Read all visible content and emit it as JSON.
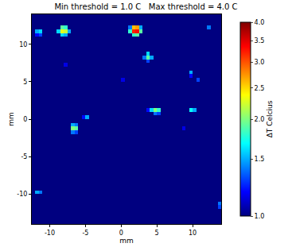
{
  "chart_data": {
    "type": "heatmap",
    "title": "Min threshold = 1.0 C   Max threshold = 4.0 C",
    "xlabel": "mm",
    "ylabel": "mm",
    "xlim": [
      -12.5,
      14
    ],
    "ylim": [
      -14,
      14
    ],
    "xticks": [
      -10,
      -5,
      0,
      5,
      10
    ],
    "yticks": [
      -10,
      -5,
      0,
      5,
      10
    ],
    "cell_size": 0.5,
    "background": 1.0,
    "cells": [
      [
        -11.75,
        11.75,
        1.5
      ],
      [
        -11.25,
        11.75,
        1.6
      ],
      [
        -11.75,
        11.25,
        1.2
      ],
      [
        -11.25,
        11.25,
        1.3
      ],
      [
        -8.25,
        11.75,
        2.3
      ],
      [
        -7.75,
        11.75,
        2.2
      ],
      [
        -8.25,
        12.25,
        1.9
      ],
      [
        -7.75,
        12.25,
        1.8
      ],
      [
        -8.75,
        11.75,
        1.6
      ],
      [
        -7.25,
        11.75,
        1.5
      ],
      [
        -8.25,
        11.25,
        1.6
      ],
      [
        -7.75,
        11.25,
        1.5
      ],
      [
        1.75,
        11.75,
        3.2
      ],
      [
        2.25,
        11.75,
        3.3
      ],
      [
        1.75,
        12.25,
        2.6
      ],
      [
        2.25,
        12.25,
        2.7
      ],
      [
        1.25,
        11.75,
        1.8
      ],
      [
        2.75,
        11.75,
        1.9
      ],
      [
        1.75,
        11.25,
        1.8
      ],
      [
        2.25,
        11.25,
        1.9
      ],
      [
        2.75,
        12.25,
        1.5
      ],
      [
        1.25,
        12.25,
        1.4
      ],
      [
        12.25,
        12.25,
        1.4
      ],
      [
        -7.75,
        7.25,
        1.15
      ],
      [
        3.75,
        8.25,
        1.9
      ],
      [
        3.75,
        8.75,
        1.6
      ],
      [
        4.25,
        8.25,
        1.5
      ],
      [
        3.25,
        8.25,
        1.4
      ],
      [
        3.75,
        7.75,
        1.3
      ],
      [
        0.25,
        5.25,
        1.15
      ],
      [
        9.75,
        6.25,
        1.5
      ],
      [
        9.75,
        5.75,
        1.2
      ],
      [
        10.75,
        5.25,
        1.3
      ],
      [
        4.75,
        1.25,
        2.0
      ],
      [
        5.25,
        1.25,
        1.8
      ],
      [
        4.25,
        1.25,
        1.6
      ],
      [
        4.75,
        0.75,
        1.4
      ],
      [
        5.25,
        0.75,
        1.3
      ],
      [
        3.75,
        1.25,
        1.2
      ],
      [
        9.75,
        1.25,
        1.7
      ],
      [
        10.25,
        1.25,
        1.5
      ],
      [
        -4.75,
        0.25,
        1.5
      ],
      [
        -5.25,
        0.25,
        1.2
      ],
      [
        -6.75,
        -1.25,
        2.0
      ],
      [
        -6.25,
        -1.25,
        1.9
      ],
      [
        -6.75,
        -0.75,
        1.5
      ],
      [
        -6.25,
        -0.75,
        1.4
      ],
      [
        -6.75,
        -1.75,
        1.4
      ],
      [
        -6.25,
        -1.75,
        1.3
      ],
      [
        -11.75,
        -9.75,
        1.5
      ],
      [
        -11.25,
        -9.75,
        1.4
      ],
      [
        13.75,
        -11.25,
        1.4
      ],
      [
        13.75,
        -11.75,
        1.3
      ],
      [
        8.75,
        -1.25,
        1.15
      ]
    ],
    "colorbar": {
      "title": "ΔT Celcius",
      "range": [
        1,
        4
      ],
      "log": true,
      "ticks": [
        {
          "value": 1,
          "label": "1.0"
        },
        {
          "value": 1.5,
          "label": "1.5"
        },
        {
          "value": 2,
          "label": "2.0"
        },
        {
          "value": 2.5,
          "label": "2.5"
        },
        {
          "value": 3,
          "label": "3.0"
        },
        {
          "value": 3.5,
          "label": "3.5"
        },
        {
          "value": 4,
          "label": "4.0"
        }
      ]
    }
  }
}
